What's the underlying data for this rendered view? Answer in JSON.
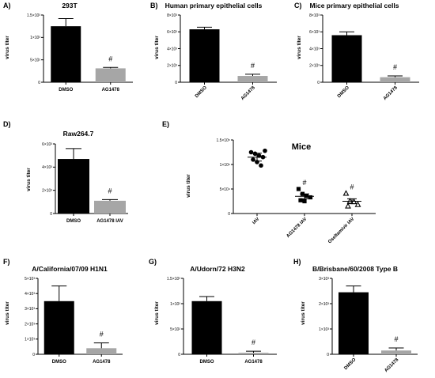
{
  "chart_data": [
    {
      "panel": "A)",
      "type": "bar",
      "title": "293T",
      "ylabel": "virus titer",
      "categories": [
        "DMSO",
        "AG1478"
      ],
      "values": [
        1250,
        310
      ],
      "errors": [
        170,
        20
      ],
      "colors": [
        "#000000",
        "#a6a6a6"
      ],
      "ylim": [
        0,
        1500
      ],
      "yticks": [
        {
          "v": 0,
          "label": "0"
        },
        {
          "v": 500,
          "label": "5×10²"
        },
        {
          "v": 1000,
          "label": "1×10³"
        },
        {
          "v": 1500,
          "label": "1.5×10³"
        }
      ],
      "annotations": [
        {
          "index": 1,
          "text": "#"
        }
      ]
    },
    {
      "panel": "B)",
      "type": "bar",
      "title": "Human primary epithelial cells",
      "ylabel": "virus titer",
      "categories": [
        "DMSO",
        "AG1478"
      ],
      "values": [
        6300,
        750
      ],
      "errors": [
        250,
        200
      ],
      "colors": [
        "#000000",
        "#a6a6a6"
      ],
      "ylim": [
        0,
        8000
      ],
      "yticks": [
        {
          "v": 0,
          "label": "0"
        },
        {
          "v": 2000,
          "label": "2×10³"
        },
        {
          "v": 4000,
          "label": "4×10³"
        },
        {
          "v": 6000,
          "label": "6×10³"
        },
        {
          "v": 8000,
          "label": "8×10³"
        }
      ],
      "annotations": [
        {
          "index": 1,
          "text": "#"
        }
      ]
    },
    {
      "panel": "C)",
      "type": "bar",
      "title": "Mice primary epithelial cells",
      "ylabel": "virus titer",
      "categories": [
        "DMSO",
        "AG1478"
      ],
      "values": [
        5600,
        600
      ],
      "errors": [
        400,
        150
      ],
      "colors": [
        "#000000",
        "#a6a6a6"
      ],
      "ylim": [
        0,
        8000
      ],
      "yticks": [
        {
          "v": 0,
          "label": "0"
        },
        {
          "v": 2000,
          "label": "2×10³"
        },
        {
          "v": 4000,
          "label": "4×10³"
        },
        {
          "v": 6000,
          "label": "6×10³"
        },
        {
          "v": 8000,
          "label": "8×10³"
        }
      ],
      "annotations": [
        {
          "index": 1,
          "text": "#"
        }
      ]
    },
    {
      "panel": "D)",
      "type": "bar",
      "title": "Raw264.7",
      "ylabel": "virus titer",
      "categories": [
        "DMSO",
        "AG1478 IAV"
      ],
      "values": [
        4700,
        1100
      ],
      "errors": [
        900,
        100
      ],
      "colors": [
        "#000000",
        "#a6a6a6"
      ],
      "ylim": [
        0,
        6000
      ],
      "yticks": [
        {
          "v": 0,
          "label": "0"
        },
        {
          "v": 2000,
          "label": "2×10³"
        },
        {
          "v": 4000,
          "label": "4×10³"
        },
        {
          "v": 6000,
          "label": "6×10³"
        }
      ],
      "annotations": [
        {
          "index": 1,
          "text": "#"
        }
      ]
    },
    {
      "panel": "E)",
      "type": "scatter",
      "title": "Mice",
      "ylabel": "virus titer",
      "categories": [
        "IAV",
        "AG1478 IAV",
        "Oseltamivir IAV"
      ],
      "points": [
        [
          125000,
          122000,
          118000,
          115000,
          110000,
          105000,
          98000,
          128000
        ],
        [
          50000,
          40000,
          36000,
          33000,
          27000,
          25000
        ],
        [
          41000,
          25000,
          24000,
          18000,
          15000
        ]
      ],
      "means": [
        115000,
        35000,
        25000
      ],
      "errors": [
        8000,
        5000,
        5000
      ],
      "markers": [
        "circle",
        "square",
        "triangle"
      ],
      "ylim": [
        0,
        150000
      ],
      "yticks": [
        {
          "v": 0,
          "label": "0"
        },
        {
          "v": 50000,
          "label": "5×10⁴"
        },
        {
          "v": 100000,
          "label": "1×10⁵"
        },
        {
          "v": 150000,
          "label": "1.5×10⁵"
        }
      ],
      "annotations": [
        {
          "index": 1,
          "text": "#"
        },
        {
          "index": 2,
          "text": "#"
        }
      ]
    },
    {
      "panel": "F)",
      "type": "bar",
      "title": "A/California/07/09 H1N1",
      "ylabel": "virus titer",
      "categories": [
        "DMSO",
        "AG1478"
      ],
      "values": [
        3500,
        400
      ],
      "errors": [
        1000,
        350
      ],
      "colors": [
        "#000000",
        "#a6a6a6"
      ],
      "ylim": [
        0,
        5000
      ],
      "yticks": [
        {
          "v": 0,
          "label": "0"
        },
        {
          "v": 1000,
          "label": "1×10³"
        },
        {
          "v": 2000,
          "label": "2×10³"
        },
        {
          "v": 3000,
          "label": "3×10³"
        },
        {
          "v": 4000,
          "label": "4×10³"
        },
        {
          "v": 5000,
          "label": "5×10³"
        }
      ],
      "annotations": [
        {
          "index": 1,
          "text": "#"
        }
      ]
    },
    {
      "panel": "G)",
      "type": "bar",
      "title": "A/Udorn/72 H3N2",
      "ylabel": "virus titer",
      "categories": [
        "DMSO",
        "AG1478"
      ],
      "values": [
        1050,
        30
      ],
      "errors": [
        90,
        30
      ],
      "colors": [
        "#000000",
        "#a6a6a6"
      ],
      "ylim": [
        0,
        1500
      ],
      "yticks": [
        {
          "v": 0,
          "label": "0"
        },
        {
          "v": 500,
          "label": "5×10²"
        },
        {
          "v": 1000,
          "label": "1×10³"
        },
        {
          "v": 1500,
          "label": "1.5×10³"
        }
      ],
      "annotations": [
        {
          "index": 1,
          "text": "#"
        }
      ]
    },
    {
      "panel": "H)",
      "type": "bar",
      "title": "B/Brisbane/60/2008 Type B",
      "ylabel": "virus titer",
      "categories": [
        "DMSO",
        "AG1478"
      ],
      "values": [
        2450,
        150
      ],
      "errors": [
        250,
        100
      ],
      "colors": [
        "#000000",
        "#a6a6a6"
      ],
      "ylim": [
        0,
        3000
      ],
      "yticks": [
        {
          "v": 0,
          "label": "0"
        },
        {
          "v": 1000,
          "label": "1×10³"
        },
        {
          "v": 2000,
          "label": "2×10³"
        },
        {
          "v": 3000,
          "label": "3×10³"
        }
      ],
      "annotations": [
        {
          "index": 1,
          "text": "#"
        }
      ]
    }
  ]
}
